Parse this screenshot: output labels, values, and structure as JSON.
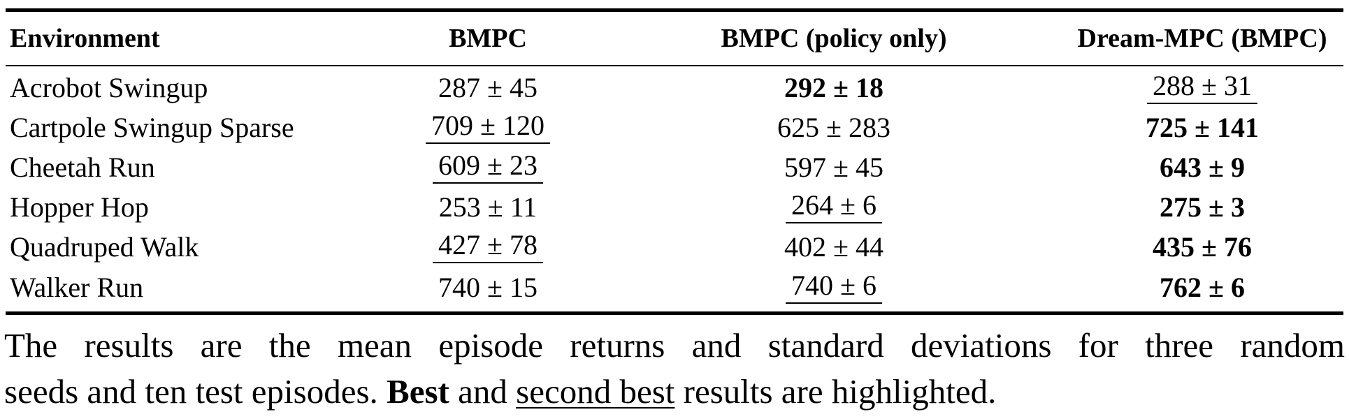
{
  "table": {
    "headers": [
      "Environment",
      "BMPC",
      "BMPC (policy only)",
      "Dream-MPC (BMPC)"
    ],
    "rows": [
      {
        "environment": "Acrobot Swingup",
        "cells": [
          {
            "text": "287 ± 45",
            "style": "normal"
          },
          {
            "text": "292 ± 18",
            "style": "best"
          },
          {
            "text": "288 ± 31",
            "style": "second"
          }
        ]
      },
      {
        "environment": "Cartpole Swingup Sparse",
        "cells": [
          {
            "text": "709 ± 120",
            "style": "second"
          },
          {
            "text": "625 ± 283",
            "style": "normal"
          },
          {
            "text": "725 ± 141",
            "style": "best"
          }
        ]
      },
      {
        "environment": "Cheetah Run",
        "cells": [
          {
            "text": "609 ± 23",
            "style": "second"
          },
          {
            "text": "597 ± 45",
            "style": "normal"
          },
          {
            "text": "643 ± 9",
            "style": "best"
          }
        ]
      },
      {
        "environment": "Hopper Hop",
        "cells": [
          {
            "text": "253 ± 11",
            "style": "normal"
          },
          {
            "text": "264 ± 6",
            "style": "second"
          },
          {
            "text": "275 ± 3",
            "style": "best"
          }
        ]
      },
      {
        "environment": "Quadruped Walk",
        "cells": [
          {
            "text": "427 ± 78",
            "style": "second"
          },
          {
            "text": "402 ± 44",
            "style": "normal"
          },
          {
            "text": "435 ± 76",
            "style": "best"
          }
        ]
      },
      {
        "environment": "Walker Run",
        "cells": [
          {
            "text": "740 ± 15",
            "style": "normal"
          },
          {
            "text": "740 ± 6",
            "style": "second"
          },
          {
            "text": "762 ± 6",
            "style": "best"
          }
        ]
      }
    ]
  },
  "caption": {
    "line1": "The results are the mean episode returns and standard deviations for three random",
    "line2_pre": "seeds and ten test episodes.",
    "best_word": "Best",
    "and_word": "and",
    "second_word": "second best",
    "line2_post": "results are highlighted."
  }
}
